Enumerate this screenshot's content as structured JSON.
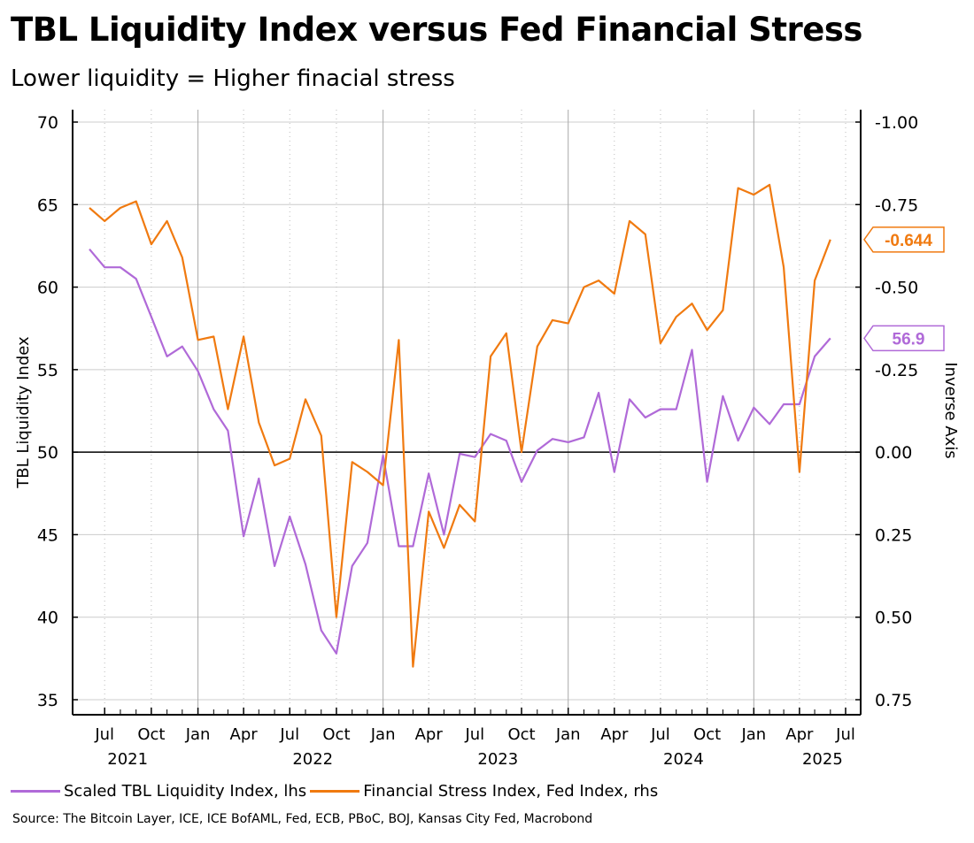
{
  "title": "TBL Liquidity Index versus Fed Financial Stress",
  "subtitle": "Lower liquidity = Higher finacial stress",
  "source": "Source: The Bitcoin Layer, ICE, ICE BofAML, Fed, ECB, PBoC, BOJ, Kansas City Fed, Macrobond",
  "colors": {
    "liquidity": "#b06ad8",
    "stress": "#f07a10",
    "grid": "#cccccc"
  },
  "chart_data": {
    "type": "line",
    "ylabel": "TBL Liquidity Index",
    "y2label": "Inverse Axis",
    "ylim": [
      35,
      70
    ],
    "yticks": [
      "35",
      "40",
      "45",
      "50",
      "55",
      "60",
      "65",
      "70"
    ],
    "y2lim": [
      0.75,
      -1.0
    ],
    "y2ticks": [
      "0.75",
      "0.50",
      "0.25",
      "0.00",
      "-0.25",
      "-0.50",
      "-0.75",
      "-1.00"
    ],
    "xticks": [
      {
        "month": "Jul",
        "year": "2021",
        "date": "2021-07"
      },
      {
        "month": "Oct",
        "year": "",
        "date": "2021-10"
      },
      {
        "month": "Jan",
        "year": "",
        "date": "2022-01"
      },
      {
        "month": "Apr",
        "year": "",
        "date": "2022-04"
      },
      {
        "month": "Jul",
        "year": "2022",
        "date": "2022-07"
      },
      {
        "month": "Oct",
        "year": "",
        "date": "2022-10"
      },
      {
        "month": "Jan",
        "year": "",
        "date": "2023-01"
      },
      {
        "month": "Apr",
        "year": "",
        "date": "2023-04"
      },
      {
        "month": "Jul",
        "year": "2023",
        "date": "2023-07"
      },
      {
        "month": "Oct",
        "year": "",
        "date": "2023-10"
      },
      {
        "month": "Jan",
        "year": "",
        "date": "2024-01"
      },
      {
        "month": "Apr",
        "year": "",
        "date": "2024-04"
      },
      {
        "month": "Jul",
        "year": "2024",
        "date": "2024-07"
      },
      {
        "month": "Oct",
        "year": "",
        "date": "2024-10"
      },
      {
        "month": "Jan",
        "year": "",
        "date": "2025-01"
      },
      {
        "month": "Apr",
        "year": "2025",
        "date": "2025-04"
      },
      {
        "month": "Jul",
        "year": "",
        "date": "2025-07"
      }
    ],
    "grid": true,
    "legend_position": "bottom",
    "series": [
      {
        "name": "Scaled TBL Liquidity Index, lhs",
        "axis": "left",
        "x": [
          "2021-06",
          "2021-07",
          "2021-08",
          "2021-09",
          "2021-10",
          "2021-11",
          "2021-12",
          "2022-01",
          "2022-02",
          "2022-03",
          "2022-04",
          "2022-05",
          "2022-06",
          "2022-07",
          "2022-08",
          "2022-09",
          "2022-10",
          "2022-11",
          "2022-12",
          "2023-01",
          "2023-02",
          "2023-03",
          "2023-04",
          "2023-05",
          "2023-06",
          "2023-07",
          "2023-08",
          "2023-09",
          "2023-10",
          "2023-11",
          "2023-12",
          "2024-01",
          "2024-02",
          "2024-03",
          "2024-04",
          "2024-05",
          "2024-06",
          "2024-07",
          "2024-08",
          "2024-09",
          "2024-10",
          "2024-11",
          "2024-12",
          "2025-01",
          "2025-02",
          "2025-03",
          "2025-04",
          "2025-05",
          "2025-06"
        ],
        "values": [
          62.3,
          61.2,
          61.2,
          60.5,
          58.2,
          55.8,
          56.4,
          54.9,
          52.6,
          51.3,
          44.9,
          48.4,
          43.1,
          46.1,
          43.2,
          39.2,
          37.8,
          43.1,
          44.5,
          49.8,
          44.3,
          44.3,
          48.7,
          45.0,
          49.9,
          49.7,
          51.1,
          50.7,
          48.2,
          50.1,
          50.8,
          50.6,
          50.9,
          53.6,
          48.8,
          53.2,
          52.1,
          52.6,
          52.6,
          56.2,
          48.2,
          53.4,
          50.7,
          52.7,
          51.7,
          52.9,
          52.9,
          55.8,
          56.9
        ]
      },
      {
        "name": "Financial Stress Index, Fed Index, rhs",
        "axis": "right",
        "x": [
          "2021-06",
          "2021-07",
          "2021-08",
          "2021-09",
          "2021-10",
          "2021-11",
          "2021-12",
          "2022-01",
          "2022-02",
          "2022-03",
          "2022-04",
          "2022-05",
          "2022-06",
          "2022-07",
          "2022-08",
          "2022-09",
          "2022-10",
          "2022-11",
          "2022-12",
          "2023-01",
          "2023-02",
          "2023-03",
          "2023-04",
          "2023-05",
          "2023-06",
          "2023-07",
          "2023-08",
          "2023-09",
          "2023-10",
          "2023-11",
          "2023-12",
          "2024-01",
          "2024-02",
          "2024-03",
          "2024-04",
          "2024-05",
          "2024-06",
          "2024-07",
          "2024-08",
          "2024-09",
          "2024-10",
          "2024-11",
          "2024-12",
          "2025-01",
          "2025-02",
          "2025-03",
          "2025-04",
          "2025-05",
          "2025-06"
        ],
        "values": [
          -0.74,
          -0.7,
          -0.74,
          -0.76,
          -0.63,
          -0.7,
          -0.59,
          -0.34,
          -0.35,
          -0.13,
          -0.35,
          -0.09,
          0.04,
          0.02,
          -0.16,
          -0.05,
          0.5,
          0.03,
          0.06,
          0.1,
          -0.34,
          0.65,
          0.18,
          0.29,
          0.16,
          0.21,
          -0.29,
          -0.36,
          0.0,
          -0.32,
          -0.4,
          -0.39,
          -0.5,
          -0.52,
          -0.48,
          -0.7,
          -0.66,
          -0.33,
          -0.41,
          -0.45,
          -0.37,
          -0.43,
          -0.8,
          -0.78,
          -0.81,
          -0.56,
          0.06,
          -0.52,
          -0.644
        ]
      }
    ],
    "callouts": {
      "liquidity_last": "56.9",
      "stress_last": "-0.644"
    }
  }
}
